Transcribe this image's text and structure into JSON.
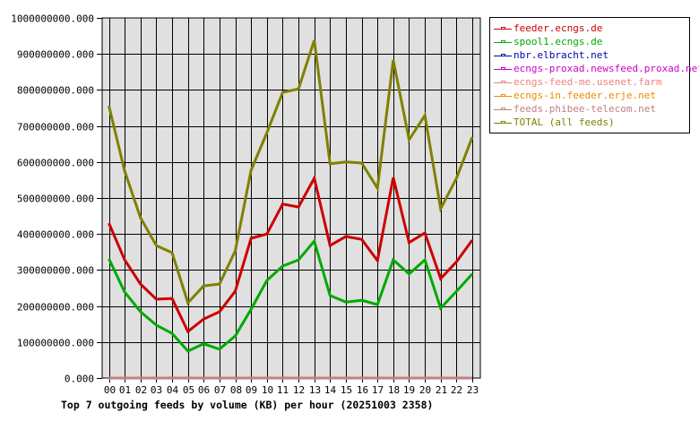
{
  "chart_data": {
    "type": "line",
    "title": "Top 7 outgoing feeds by volume (KB) per hour (20251003 2358)",
    "xlabel": "",
    "ylabel": "",
    "ylim": [
      0,
      1000000000
    ],
    "grid": true,
    "legend_position": "right",
    "yticks": [
      "0.000",
      "100000000.000",
      "200000000.000",
      "300000000.000",
      "400000000.000",
      "500000000.000",
      "600000000.000",
      "700000000.000",
      "800000000.000",
      "900000000.000",
      "1000000000.000"
    ],
    "categories": [
      "00",
      "01",
      "02",
      "03",
      "04",
      "05",
      "06",
      "07",
      "08",
      "09",
      "10",
      "11",
      "12",
      "13",
      "14",
      "15",
      "16",
      "17",
      "18",
      "19",
      "20",
      "21",
      "22",
      "23"
    ],
    "series": [
      {
        "name": "feeder.ecngs.de",
        "color": "#CC0000",
        "values": [
          430000000,
          328000000,
          261000000,
          219000000,
          221000000,
          129000000,
          164000000,
          184000000,
          241000000,
          388000000,
          400000000,
          483000000,
          475000000,
          555000000,
          368000000,
          393000000,
          385000000,
          326000000,
          557000000,
          376000000,
          403000000,
          276000000,
          323000000,
          383000000
        ]
      },
      {
        "name": "spool1.ecngs.de",
        "color": "#00AA00",
        "values": [
          331000000,
          239000000,
          184000000,
          147000000,
          124000000,
          75000000,
          95000000,
          80000000,
          117000000,
          191000000,
          271000000,
          311000000,
          328000000,
          380000000,
          229000000,
          211000000,
          216000000,
          204000000,
          328000000,
          289000000,
          328000000,
          194000000,
          241000000,
          289000000
        ]
      },
      {
        "name": "nbr.elbracht.net",
        "color": "#0000AA",
        "values": [
          0,
          0,
          0,
          0,
          0,
          0,
          0,
          0,
          0,
          0,
          0,
          0,
          0,
          0,
          0,
          0,
          0,
          0,
          0,
          0,
          0,
          0,
          0,
          0
        ]
      },
      {
        "name": "ecngs-proxad.newsfeed.proxad.net",
        "color": "#CC00CC",
        "values": [
          0,
          0,
          0,
          0,
          0,
          0,
          0,
          0,
          0,
          0,
          0,
          0,
          0,
          0,
          0,
          0,
          0,
          0,
          0,
          0,
          0,
          0,
          0,
          0
        ]
      },
      {
        "name": "ecngs-feed-me.usenet.farm",
        "color": "#F08080",
        "values": [
          0,
          0,
          0,
          0,
          0,
          0,
          0,
          0,
          0,
          0,
          0,
          0,
          0,
          0,
          0,
          0,
          0,
          0,
          0,
          0,
          0,
          0,
          0,
          0
        ]
      },
      {
        "name": "ecngs-in.feeder.erje.net",
        "color": "#EE8800",
        "values": [
          0,
          0,
          0,
          0,
          0,
          0,
          0,
          0,
          0,
          0,
          0,
          0,
          0,
          0,
          0,
          0,
          0,
          0,
          0,
          0,
          0,
          0,
          0,
          0
        ]
      },
      {
        "name": "feeds.phibee-telecom.net",
        "color": "#C08080",
        "values": [
          0,
          0,
          0,
          0,
          0,
          0,
          0,
          0,
          0,
          0,
          0,
          0,
          0,
          0,
          0,
          0,
          0,
          0,
          0,
          0,
          0,
          0,
          0,
          0
        ]
      },
      {
        "name": "TOTAL (all feeds)",
        "color": "#808000",
        "values": [
          756000000,
          575000000,
          445000000,
          368000000,
          348000000,
          209000000,
          256000000,
          261000000,
          353000000,
          577000000,
          681000000,
          793000000,
          803000000,
          938000000,
          595000000,
          600000000,
          597000000,
          527000000,
          883000000,
          662000000,
          729000000,
          470000000,
          555000000,
          669000000
        ]
      }
    ]
  },
  "colors": {
    "plot_background": "#E0E0E0",
    "grid": "#000000"
  }
}
